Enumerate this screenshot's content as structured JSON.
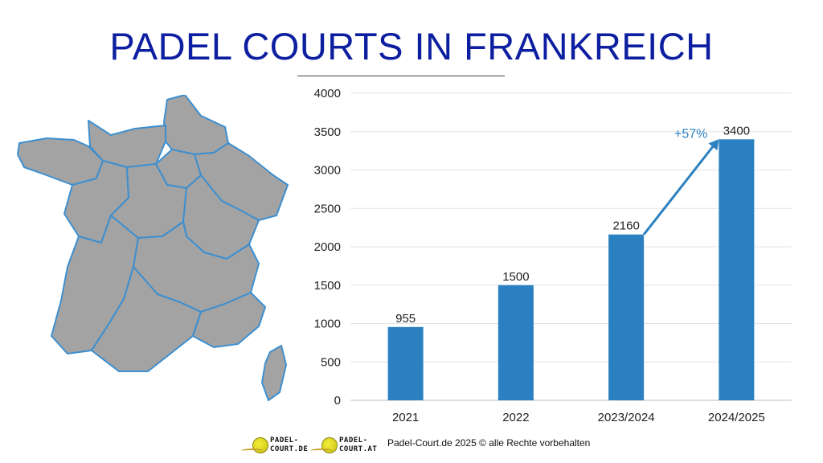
{
  "title": "PADEL COURTS IN FRANKREICH",
  "chart_data": {
    "type": "bar",
    "categories": [
      "2021",
      "2022",
      "2023/2024",
      "2024/2025"
    ],
    "values": [
      955,
      1500,
      2160,
      3400
    ],
    "data_labels": [
      "955",
      "1500",
      "2160",
      "3400"
    ],
    "ylim": [
      0,
      4000
    ],
    "yticks": [
      0,
      500,
      1000,
      1500,
      2000,
      2500,
      3000,
      3500,
      4000
    ],
    "grid": true,
    "bar_color": "#2a80c0",
    "annotation": {
      "text": "+57%",
      "from_category": "2023/2024",
      "to_category": "2024/2025",
      "color": "#2a80c0"
    },
    "title": "",
    "xlabel": "",
    "ylabel": ""
  },
  "map": {
    "fill": "#a3a3a3",
    "border_color": "#3d8fd0"
  },
  "footer": {
    "logo1": {
      "line1": "PADEL-",
      "line2": "COURT.DE"
    },
    "logo2": {
      "line1": "PADEL-",
      "line2": "COURT.AT"
    },
    "copyright": "Padel-Court.de 2025 © alle Rechte vorbehalten"
  }
}
